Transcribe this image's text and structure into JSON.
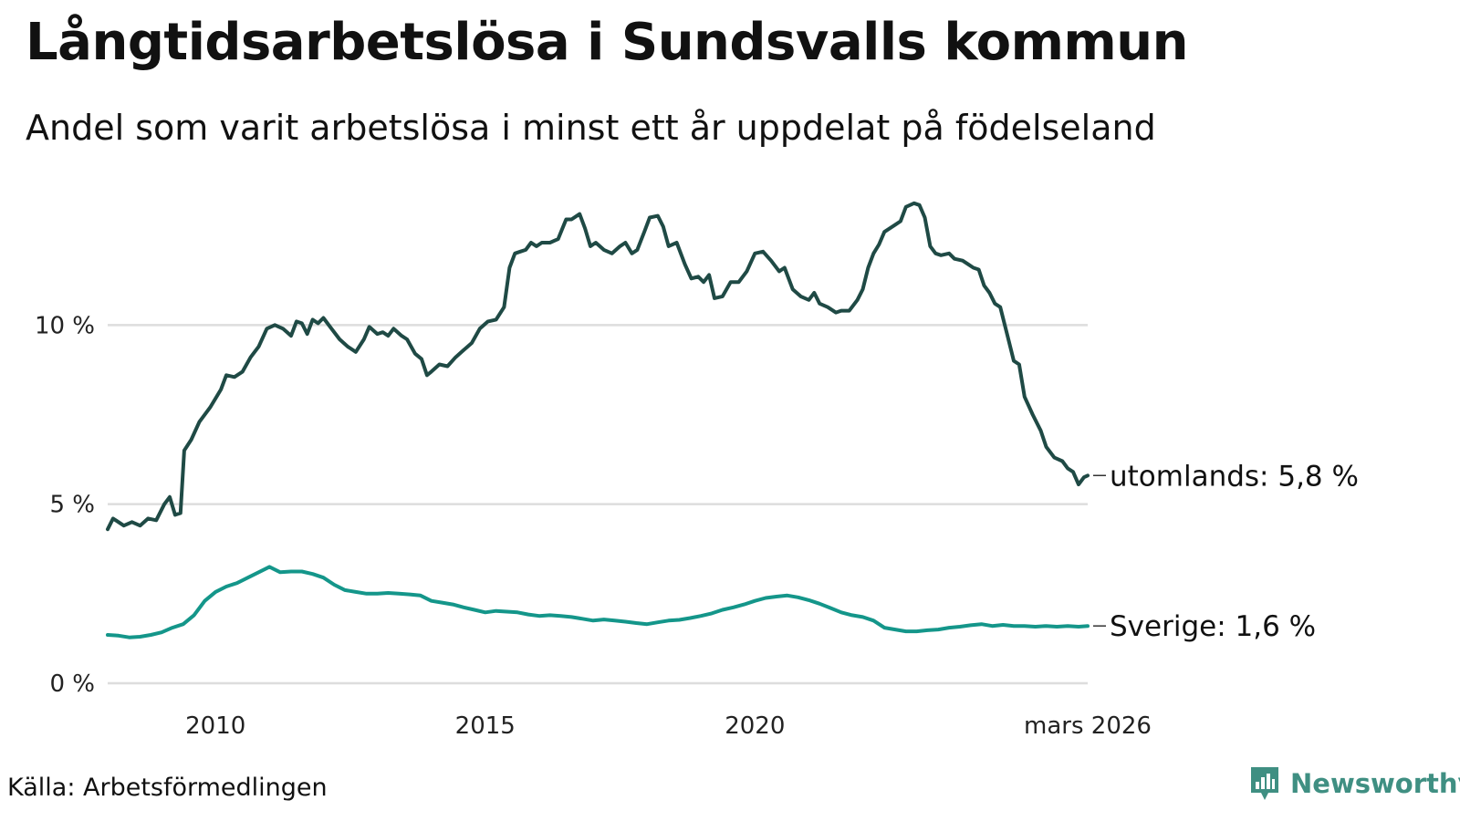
{
  "title": "Långtidsarbetslösa i Sundsvalls kommun",
  "subtitle": "Andel som varit arbetslösa i minst ett år uppdelat på födelseland",
  "source": "Källa: Arbetsförmedlingen",
  "brand": "Newsworthy",
  "colors": {
    "utomlands": "#1f4a45",
    "sverige": "#14968a",
    "grid": "#dddddd",
    "brand": "#3f8f82"
  },
  "chart_data": {
    "type": "line",
    "title": "Långtidsarbetslösa i Sundsvalls kommun",
    "xlabel": "",
    "ylabel": "",
    "ylim": [
      0,
      15
    ],
    "xlim": [
      2008.0,
      2026.17
    ],
    "y_ticks": [
      {
        "value": 0,
        "label": "0 %"
      },
      {
        "value": 5,
        "label": "5 %"
      },
      {
        "value": 10,
        "label": "10 %"
      }
    ],
    "x_ticks": [
      {
        "value": 2010,
        "label": "2010"
      },
      {
        "value": 2015,
        "label": "2015"
      },
      {
        "value": 2020,
        "label": "2020"
      },
      {
        "value": 2026.17,
        "label": "mars 2026"
      }
    ],
    "series": [
      {
        "key": "utomlands",
        "name": "utomlands",
        "end_label": "utomlands: 5,8 %",
        "points": [
          [
            2008.0,
            4.3
          ],
          [
            2008.1,
            4.6
          ],
          [
            2008.3,
            4.4
          ],
          [
            2008.45,
            4.5
          ],
          [
            2008.6,
            4.4
          ],
          [
            2008.75,
            4.6
          ],
          [
            2008.9,
            4.55
          ],
          [
            2009.05,
            5.0
          ],
          [
            2009.15,
            5.2
          ],
          [
            2009.25,
            4.7
          ],
          [
            2009.35,
            4.75
          ],
          [
            2009.42,
            6.5
          ],
          [
            2009.55,
            6.8
          ],
          [
            2009.7,
            7.3
          ],
          [
            2009.9,
            7.7
          ],
          [
            2010.1,
            8.2
          ],
          [
            2010.2,
            8.6
          ],
          [
            2010.35,
            8.55
          ],
          [
            2010.5,
            8.7
          ],
          [
            2010.65,
            9.1
          ],
          [
            2010.8,
            9.4
          ],
          [
            2010.95,
            9.9
          ],
          [
            2011.1,
            10.0
          ],
          [
            2011.25,
            9.9
          ],
          [
            2011.4,
            9.7
          ],
          [
            2011.5,
            10.1
          ],
          [
            2011.6,
            10.05
          ],
          [
            2011.7,
            9.75
          ],
          [
            2011.8,
            10.15
          ],
          [
            2011.9,
            10.05
          ],
          [
            2012.0,
            10.2
          ],
          [
            2012.15,
            9.9
          ],
          [
            2012.3,
            9.6
          ],
          [
            2012.45,
            9.4
          ],
          [
            2012.6,
            9.25
          ],
          [
            2012.75,
            9.6
          ],
          [
            2012.85,
            9.95
          ],
          [
            2013.0,
            9.75
          ],
          [
            2013.1,
            9.8
          ],
          [
            2013.2,
            9.7
          ],
          [
            2013.3,
            9.9
          ],
          [
            2013.45,
            9.7
          ],
          [
            2013.55,
            9.6
          ],
          [
            2013.7,
            9.2
          ],
          [
            2013.82,
            9.05
          ],
          [
            2013.92,
            8.6
          ],
          [
            2014.0,
            8.7
          ],
          [
            2014.15,
            8.9
          ],
          [
            2014.3,
            8.85
          ],
          [
            2014.45,
            9.1
          ],
          [
            2014.6,
            9.3
          ],
          [
            2014.75,
            9.5
          ],
          [
            2014.9,
            9.9
          ],
          [
            2015.05,
            10.1
          ],
          [
            2015.2,
            10.15
          ],
          [
            2015.35,
            10.5
          ],
          [
            2015.45,
            11.6
          ],
          [
            2015.55,
            12.0
          ],
          [
            2015.65,
            12.05
          ],
          [
            2015.75,
            12.1
          ],
          [
            2015.85,
            12.3
          ],
          [
            2015.95,
            12.2
          ],
          [
            2016.05,
            12.3
          ],
          [
            2016.2,
            12.3
          ],
          [
            2016.35,
            12.4
          ],
          [
            2016.5,
            12.95
          ],
          [
            2016.6,
            12.95
          ],
          [
            2016.75,
            13.1
          ],
          [
            2016.85,
            12.7
          ],
          [
            2016.95,
            12.2
          ],
          [
            2017.05,
            12.3
          ],
          [
            2017.2,
            12.1
          ],
          [
            2017.35,
            12.0
          ],
          [
            2017.5,
            12.2
          ],
          [
            2017.6,
            12.3
          ],
          [
            2017.72,
            12.0
          ],
          [
            2017.82,
            12.1
          ],
          [
            2017.95,
            12.6
          ],
          [
            2018.05,
            13.0
          ],
          [
            2018.2,
            13.05
          ],
          [
            2018.3,
            12.75
          ],
          [
            2018.4,
            12.2
          ],
          [
            2018.55,
            12.3
          ],
          [
            2018.7,
            11.7
          ],
          [
            2018.82,
            11.3
          ],
          [
            2018.95,
            11.35
          ],
          [
            2019.05,
            11.2
          ],
          [
            2019.15,
            11.4
          ],
          [
            2019.25,
            10.75
          ],
          [
            2019.4,
            10.8
          ],
          [
            2019.55,
            11.2
          ],
          [
            2019.7,
            11.2
          ],
          [
            2019.85,
            11.5
          ],
          [
            2020.0,
            12.0
          ],
          [
            2020.15,
            12.05
          ],
          [
            2020.3,
            11.8
          ],
          [
            2020.45,
            11.5
          ],
          [
            2020.55,
            11.6
          ],
          [
            2020.7,
            11.0
          ],
          [
            2020.85,
            10.8
          ],
          [
            2021.0,
            10.7
          ],
          [
            2021.1,
            10.9
          ],
          [
            2021.2,
            10.6
          ],
          [
            2021.35,
            10.5
          ],
          [
            2021.5,
            10.35
          ],
          [
            2021.6,
            10.4
          ],
          [
            2021.75,
            10.4
          ],
          [
            2021.9,
            10.7
          ],
          [
            2022.0,
            11.0
          ],
          [
            2022.1,
            11.6
          ],
          [
            2022.2,
            12.0
          ],
          [
            2022.3,
            12.25
          ],
          [
            2022.4,
            12.6
          ],
          [
            2022.5,
            12.7
          ],
          [
            2022.6,
            12.8
          ],
          [
            2022.7,
            12.9
          ],
          [
            2022.8,
            13.3
          ],
          [
            2022.95,
            13.4
          ],
          [
            2023.05,
            13.35
          ],
          [
            2023.15,
            13.0
          ],
          [
            2023.25,
            12.2
          ],
          [
            2023.35,
            12.0
          ],
          [
            2023.45,
            11.95
          ],
          [
            2023.6,
            12.0
          ],
          [
            2023.7,
            11.85
          ],
          [
            2023.85,
            11.8
          ],
          [
            2023.95,
            11.7
          ],
          [
            2024.05,
            11.6
          ],
          [
            2024.15,
            11.55
          ],
          [
            2024.25,
            11.1
          ],
          [
            2024.35,
            10.9
          ],
          [
            2024.45,
            10.6
          ],
          [
            2024.55,
            10.5
          ],
          [
            2024.7,
            9.6
          ],
          [
            2024.8,
            9.0
          ],
          [
            2024.9,
            8.9
          ],
          [
            2025.0,
            8.0
          ],
          [
            2025.15,
            7.5
          ],
          [
            2025.3,
            7.05
          ],
          [
            2025.4,
            6.6
          ],
          [
            2025.55,
            6.3
          ],
          [
            2025.7,
            6.2
          ],
          [
            2025.8,
            6.0
          ],
          [
            2025.9,
            5.9
          ],
          [
            2026.0,
            5.55
          ],
          [
            2026.1,
            5.75
          ],
          [
            2026.17,
            5.8
          ]
        ]
      },
      {
        "key": "sverige",
        "name": "Sverige",
        "end_label": "Sverige: 1,6 %",
        "points": [
          [
            2008.0,
            1.35
          ],
          [
            2008.2,
            1.33
          ],
          [
            2008.4,
            1.28
          ],
          [
            2008.6,
            1.3
          ],
          [
            2008.8,
            1.35
          ],
          [
            2009.0,
            1.42
          ],
          [
            2009.2,
            1.55
          ],
          [
            2009.4,
            1.65
          ],
          [
            2009.6,
            1.9
          ],
          [
            2009.8,
            2.3
          ],
          [
            2010.0,
            2.55
          ],
          [
            2010.2,
            2.7
          ],
          [
            2010.4,
            2.8
          ],
          [
            2010.6,
            2.95
          ],
          [
            2010.8,
            3.1
          ],
          [
            2011.0,
            3.25
          ],
          [
            2011.2,
            3.1
          ],
          [
            2011.4,
            3.12
          ],
          [
            2011.6,
            3.12
          ],
          [
            2011.8,
            3.05
          ],
          [
            2012.0,
            2.95
          ],
          [
            2012.2,
            2.75
          ],
          [
            2012.4,
            2.6
          ],
          [
            2012.6,
            2.55
          ],
          [
            2012.8,
            2.5
          ],
          [
            2013.0,
            2.5
          ],
          [
            2013.2,
            2.52
          ],
          [
            2013.4,
            2.5
          ],
          [
            2013.6,
            2.48
          ],
          [
            2013.8,
            2.45
          ],
          [
            2014.0,
            2.3
          ],
          [
            2014.2,
            2.25
          ],
          [
            2014.4,
            2.2
          ],
          [
            2014.6,
            2.12
          ],
          [
            2014.8,
            2.05
          ],
          [
            2015.0,
            1.98
          ],
          [
            2015.2,
            2.02
          ],
          [
            2015.4,
            2.0
          ],
          [
            2015.6,
            1.98
          ],
          [
            2015.8,
            1.92
          ],
          [
            2016.0,
            1.88
          ],
          [
            2016.2,
            1.9
          ],
          [
            2016.4,
            1.88
          ],
          [
            2016.6,
            1.85
          ],
          [
            2016.8,
            1.8
          ],
          [
            2017.0,
            1.75
          ],
          [
            2017.2,
            1.78
          ],
          [
            2017.4,
            1.75
          ],
          [
            2017.6,
            1.72
          ],
          [
            2017.8,
            1.68
          ],
          [
            2018.0,
            1.65
          ],
          [
            2018.2,
            1.7
          ],
          [
            2018.4,
            1.75
          ],
          [
            2018.6,
            1.77
          ],
          [
            2018.8,
            1.82
          ],
          [
            2019.0,
            1.88
          ],
          [
            2019.2,
            1.95
          ],
          [
            2019.4,
            2.05
          ],
          [
            2019.6,
            2.12
          ],
          [
            2019.8,
            2.2
          ],
          [
            2020.0,
            2.3
          ],
          [
            2020.2,
            2.38
          ],
          [
            2020.4,
            2.42
          ],
          [
            2020.6,
            2.45
          ],
          [
            2020.8,
            2.4
          ],
          [
            2021.0,
            2.32
          ],
          [
            2021.2,
            2.22
          ],
          [
            2021.4,
            2.1
          ],
          [
            2021.6,
            1.98
          ],
          [
            2021.8,
            1.9
          ],
          [
            2022.0,
            1.85
          ],
          [
            2022.2,
            1.75
          ],
          [
            2022.4,
            1.55
          ],
          [
            2022.6,
            1.5
          ],
          [
            2022.8,
            1.45
          ],
          [
            2023.0,
            1.45
          ],
          [
            2023.2,
            1.48
          ],
          [
            2023.4,
            1.5
          ],
          [
            2023.6,
            1.55
          ],
          [
            2023.8,
            1.58
          ],
          [
            2024.0,
            1.62
          ],
          [
            2024.2,
            1.65
          ],
          [
            2024.4,
            1.6
          ],
          [
            2024.6,
            1.63
          ],
          [
            2024.8,
            1.6
          ],
          [
            2025.0,
            1.6
          ],
          [
            2025.2,
            1.58
          ],
          [
            2025.4,
            1.6
          ],
          [
            2025.6,
            1.58
          ],
          [
            2025.8,
            1.6
          ],
          [
            2026.0,
            1.58
          ],
          [
            2026.17,
            1.6
          ]
        ]
      }
    ]
  }
}
